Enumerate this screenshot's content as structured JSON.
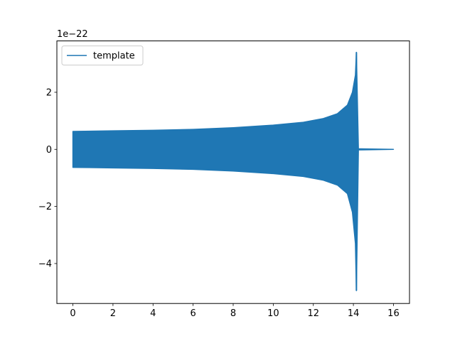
{
  "chart_data": {
    "type": "line",
    "title": "",
    "xlabel": "",
    "ylabel": "",
    "y_offset_text": "1e−22",
    "y_scale_exponent": -22,
    "xlim": [
      -0.8,
      16.8
    ],
    "ylim": [
      -5.4,
      3.8
    ],
    "x_ticks": [
      0,
      2,
      4,
      6,
      8,
      10,
      12,
      14,
      16
    ],
    "x_tick_labels": [
      "0",
      "2",
      "4",
      "6",
      "8",
      "10",
      "12",
      "14",
      "16"
    ],
    "y_ticks": [
      -4,
      -2,
      0,
      2
    ],
    "y_tick_labels": [
      "−4",
      "−2",
      "0",
      "2"
    ],
    "grid": false,
    "legend_position": "upper-left",
    "series_color": "#1f77b4",
    "series": [
      {
        "name": "template",
        "color": "#1f77b4",
        "description_points": [
          {
            "x": 0.0,
            "y_upper": 0.63,
            "y_lower": -0.63
          },
          {
            "x": 2.0,
            "y_upper": 0.65,
            "y_lower": -0.65
          },
          {
            "x": 4.0,
            "y_upper": 0.67,
            "y_lower": -0.67
          },
          {
            "x": 6.0,
            "y_upper": 0.7,
            "y_lower": -0.7
          },
          {
            "x": 8.0,
            "y_upper": 0.76,
            "y_lower": -0.76
          },
          {
            "x": 10.0,
            "y_upper": 0.85,
            "y_lower": -0.85
          },
          {
            "x": 11.5,
            "y_upper": 0.95,
            "y_lower": -0.95
          },
          {
            "x": 12.5,
            "y_upper": 1.08,
            "y_lower": -1.08
          },
          {
            "x": 13.2,
            "y_upper": 1.25,
            "y_lower": -1.25
          },
          {
            "x": 13.7,
            "y_upper": 1.55,
            "y_lower": -1.55
          },
          {
            "x": 13.95,
            "y_upper": 2.0,
            "y_lower": -2.2
          },
          {
            "x": 14.1,
            "y_upper": 2.6,
            "y_lower": -3.3
          },
          {
            "x": 14.15,
            "y_upper": 3.4,
            "y_lower": -4.95
          },
          {
            "x": 14.25,
            "y_upper": 0.02,
            "y_lower": -0.02
          },
          {
            "x": 16.0,
            "y_upper": 0.0,
            "y_lower": 0.0
          }
        ]
      }
    ]
  }
}
